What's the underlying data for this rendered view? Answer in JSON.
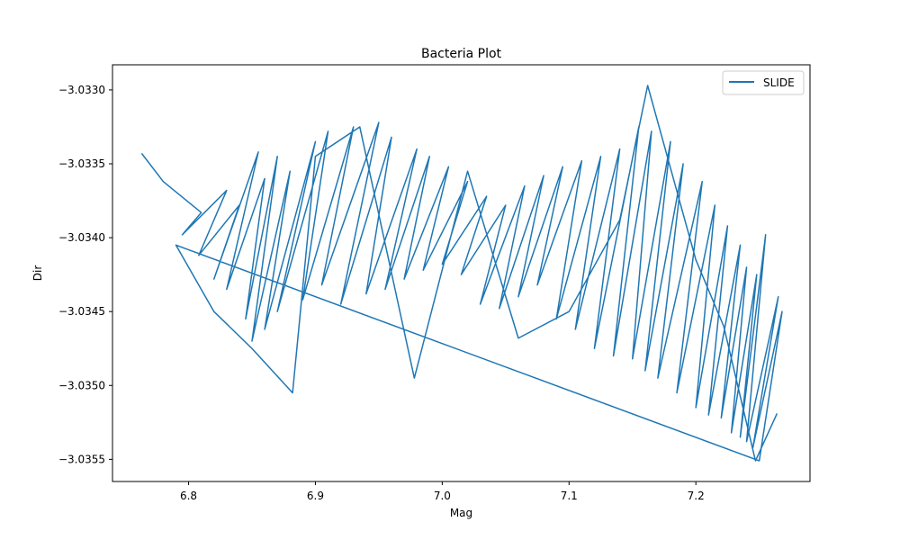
{
  "chart_data": {
    "type": "line",
    "title": "Bacteria Plot",
    "xlabel": "Mag",
    "ylabel": "Dir",
    "xlim": [
      6.74,
      7.29
    ],
    "ylim": [
      -3.03565,
      -3.03283
    ],
    "xticks": [
      6.8,
      6.9,
      7.0,
      7.1,
      7.2
    ],
    "xtick_labels": [
      "6.8",
      "6.9",
      "7.0",
      "7.1",
      "7.2"
    ],
    "yticks": [
      -3.033,
      -3.0335,
      -3.034,
      -3.0345,
      -3.035,
      -3.0355
    ],
    "ytick_labels": [
      "−3.0330",
      "−3.0335",
      "−3.0340",
      "−3.0345",
      "−3.0350",
      "−3.0355"
    ],
    "grid": false,
    "legend_position": "top-right",
    "series": [
      {
        "name": "SLIDE",
        "color": "#1f77b4",
        "x": [
          6.763,
          6.78,
          6.81,
          6.795,
          6.83,
          6.808,
          6.84,
          6.82,
          6.855,
          6.83,
          6.86,
          6.845,
          6.87,
          6.85,
          6.88,
          6.86,
          6.9,
          6.87,
          6.91,
          6.89,
          6.93,
          6.905,
          6.95,
          6.92,
          6.96,
          6.94,
          6.98,
          6.955,
          6.99,
          6.97,
          7.005,
          6.985,
          7.02,
          7.0,
          7.035,
          7.015,
          7.05,
          7.03,
          7.065,
          7.045,
          7.08,
          7.06,
          7.095,
          7.075,
          7.11,
          7.09,
          7.125,
          7.105,
          7.14,
          7.12,
          7.155,
          7.135,
          7.165,
          7.15,
          7.18,
          7.16,
          7.19,
          7.17,
          7.205,
          7.185,
          7.215,
          7.2,
          7.225,
          7.21,
          7.235,
          7.22,
          7.24,
          7.228,
          7.248,
          7.235,
          7.255,
          7.24,
          7.265,
          7.245,
          7.268,
          7.25,
          6.79,
          6.82,
          6.85,
          6.882,
          6.9,
          6.935,
          6.978,
          7.02,
          7.06,
          7.1,
          7.14,
          7.162,
          7.2,
          7.222,
          7.247,
          7.264
        ],
        "y": [
          -3.03343,
          -3.03362,
          -3.03383,
          -3.03398,
          -3.03368,
          -3.03412,
          -3.03378,
          -3.03428,
          -3.03342,
          -3.03435,
          -3.0336,
          -3.03455,
          -3.03345,
          -3.0347,
          -3.03355,
          -3.03462,
          -3.03335,
          -3.0345,
          -3.03328,
          -3.03442,
          -3.03325,
          -3.03432,
          -3.03322,
          -3.03445,
          -3.03332,
          -3.03438,
          -3.0334,
          -3.03435,
          -3.03345,
          -3.03428,
          -3.03352,
          -3.03422,
          -3.03362,
          -3.03418,
          -3.03372,
          -3.03425,
          -3.03378,
          -3.03445,
          -3.03365,
          -3.03448,
          -3.03358,
          -3.0344,
          -3.03352,
          -3.03432,
          -3.03348,
          -3.03455,
          -3.03345,
          -3.03462,
          -3.0334,
          -3.03475,
          -3.03325,
          -3.0348,
          -3.03328,
          -3.03482,
          -3.03335,
          -3.0349,
          -3.0335,
          -3.03495,
          -3.03362,
          -3.03505,
          -3.03378,
          -3.03515,
          -3.03392,
          -3.0352,
          -3.03405,
          -3.03522,
          -3.0342,
          -3.03532,
          -3.03425,
          -3.03535,
          -3.03398,
          -3.03538,
          -3.0344,
          -3.03542,
          -3.0345,
          -3.03551,
          -3.03405,
          -3.0345,
          -3.03475,
          -3.03505,
          -3.03345,
          -3.03325,
          -3.03495,
          -3.03355,
          -3.03468,
          -3.0345,
          -3.03388,
          -3.03297,
          -3.03415,
          -3.0346,
          -3.03551,
          -3.03519
        ]
      }
    ]
  }
}
